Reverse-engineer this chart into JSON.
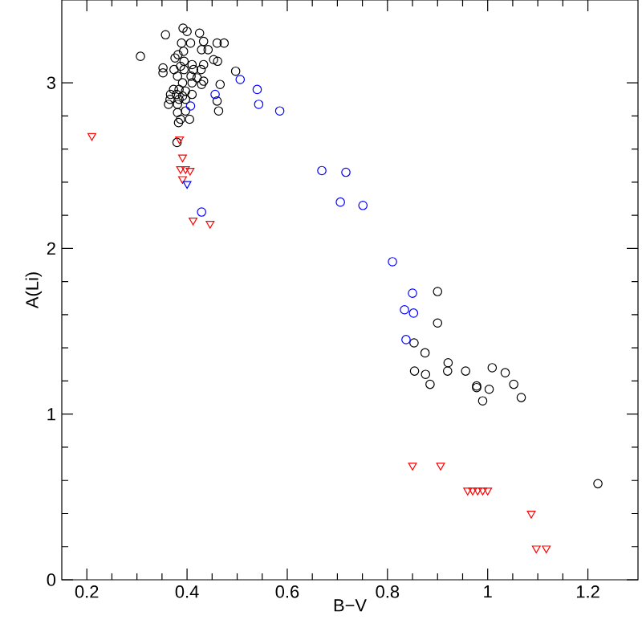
{
  "chart_data": {
    "type": "scatter",
    "xlabel": "B−V",
    "ylabel": "A(Li)",
    "xlim": [
      0.15,
      1.3
    ],
    "ylim": [
      0,
      3.5
    ],
    "xticks": [
      0.2,
      0.4,
      0.6,
      0.8,
      1,
      1.2
    ],
    "yticks": [
      0,
      1,
      2,
      3
    ],
    "series": [
      {
        "color": "#000000",
        "marker": "circle",
        "x": [
          0.357,
          0.307,
          0.392,
          0.4,
          0.425,
          0.389,
          0.407,
          0.433,
          0.46,
          0.474,
          0.393,
          0.429,
          0.442,
          0.382,
          0.376,
          0.453,
          0.461,
          0.394,
          0.387,
          0.41,
          0.433,
          0.352,
          0.352,
          0.374,
          0.394,
          0.413,
          0.428,
          0.497,
          0.381,
          0.408,
          0.42,
          0.433,
          0.391,
          0.41,
          0.466,
          0.429,
          0.373,
          0.384,
          0.397,
          0.367,
          0.379,
          0.391,
          0.41,
          0.366,
          0.384,
          0.397,
          0.46,
          0.363,
          0.381,
          0.463,
          0.381,
          0.397,
          0.387,
          0.405,
          0.383,
          0.38,
          0.853,
          0.9,
          0.9,
          0.875,
          0.854,
          0.876,
          0.885,
          0.921,
          0.92,
          0.956,
          0.978,
          0.978,
          1.003,
          0.99,
          1.009,
          1.035,
          1.052,
          1.067,
          1.22
        ],
        "values": [
          3.29,
          3.16,
          3.33,
          3.31,
          3.3,
          3.24,
          3.24,
          3.25,
          3.24,
          3.24,
          3.19,
          3.2,
          3.2,
          3.17,
          3.15,
          3.14,
          3.13,
          3.13,
          3.1,
          3.11,
          3.11,
          3.09,
          3.06,
          3.08,
          3.08,
          3.08,
          3.08,
          3.07,
          3.04,
          3.04,
          3.03,
          3.01,
          3.0,
          3.0,
          2.99,
          2.99,
          2.96,
          2.96,
          2.95,
          2.93,
          2.93,
          2.92,
          2.93,
          2.9,
          2.9,
          2.9,
          2.89,
          2.87,
          2.87,
          2.83,
          2.82,
          2.83,
          2.78,
          2.78,
          2.76,
          2.64,
          1.43,
          1.74,
          1.55,
          1.37,
          1.26,
          1.24,
          1.18,
          1.31,
          1.26,
          1.26,
          1.17,
          1.16,
          1.15,
          1.08,
          1.28,
          1.25,
          1.18,
          1.1,
          0.58
        ]
      },
      {
        "color": "#0000ff",
        "marker": "circle",
        "x": [
          0.407,
          0.456,
          0.506,
          0.54,
          0.543,
          0.585,
          0.669,
          0.717,
          0.706,
          0.429,
          0.751,
          0.81,
          0.85,
          0.834,
          0.852,
          0.837
        ],
        "values": [
          2.86,
          2.93,
          3.02,
          2.96,
          2.87,
          2.83,
          2.47,
          2.46,
          2.28,
          2.22,
          2.26,
          1.92,
          1.73,
          1.63,
          1.61,
          1.45
        ]
      },
      {
        "color": "#ff0000",
        "marker": "triangle",
        "x": [
          0.21,
          0.385,
          0.391,
          0.387,
          0.397,
          0.406,
          0.391,
          0.412,
          0.446,
          0.85,
          0.906,
          0.96,
          0.97,
          0.98,
          0.99,
          1.0,
          1.087,
          1.097,
          1.117
        ],
        "values": [
          2.68,
          2.66,
          2.55,
          2.48,
          2.48,
          2.47,
          2.42,
          2.17,
          2.15,
          0.69,
          0.69,
          0.54,
          0.54,
          0.54,
          0.54,
          0.54,
          0.4,
          0.19,
          0.19
        ]
      },
      {
        "color": "#0000ff",
        "marker": "triangle",
        "x": [
          0.4
        ],
        "values": [
          2.39
        ]
      }
    ]
  }
}
